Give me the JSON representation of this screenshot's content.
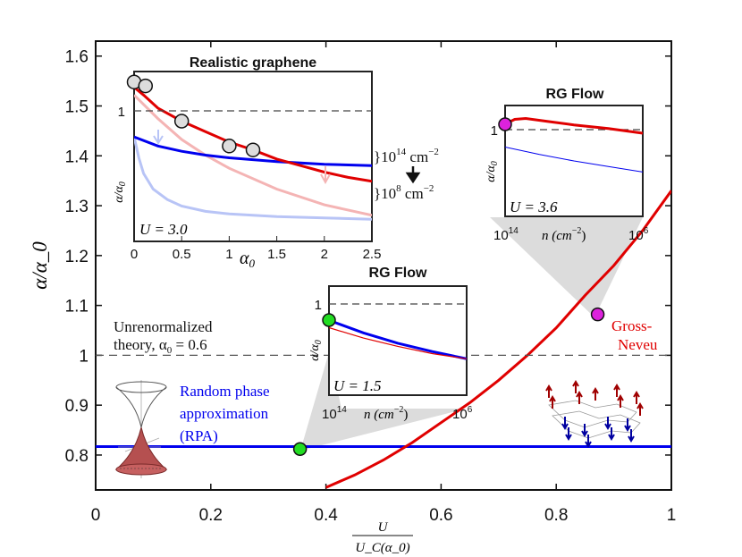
{
  "chart_data": {
    "type": "line",
    "main": {
      "xlabel_num": "U",
      "xlabel_den": "U_C(α_0)",
      "ylabel": "α/α_0",
      "xlim": [
        0,
        1
      ],
      "ylim": [
        0.73,
        1.63
      ],
      "x_ticks": [
        "0",
        "0.2",
        "0.4",
        "0.6",
        "0.8",
        "1"
      ],
      "y_ticks": [
        "0.8",
        "0.9",
        "1",
        "1.1",
        "1.2",
        "1.3",
        "1.4",
        "1.5",
        "1.6"
      ],
      "series": [
        {
          "name": "Random phase approximation (RPA)",
          "color": "#0000ee",
          "x": [
            0,
            1
          ],
          "y": [
            0.817,
            0.817
          ]
        },
        {
          "name": "Gross-Neveu",
          "color": "#e00000",
          "x": [
            0.4,
            0.45,
            0.5,
            0.55,
            0.6,
            0.65,
            0.7,
            0.75,
            0.8,
            0.85,
            0.9,
            0.95,
            1.0
          ],
          "y": [
            0.735,
            0.76,
            0.79,
            0.825,
            0.865,
            0.905,
            0.95,
            1.0,
            1.055,
            1.12,
            1.18,
            1.25,
            1.33
          ]
        },
        {
          "name": "Unrenormalized",
          "color": "#555555",
          "dashed": true,
          "x": [
            0,
            1
          ],
          "y": [
            1.0,
            1.0
          ]
        }
      ],
      "markers": [
        {
          "x": 0.355,
          "y": 0.812,
          "color": "#22dd22"
        },
        {
          "x": 0.872,
          "y": 1.082,
          "color": "#dd22dd"
        }
      ],
      "annotations": {
        "rpa_line1": "Random phase",
        "rpa_line2": "approximation",
        "rpa_line3": "(RPA)",
        "gn_line1": "Gross-",
        "gn_line2": "Neveu",
        "unren_line1": "Unrenormalized",
        "unren_line2": "theory, α",
        "unren_sub": "0",
        "unren_val": " = 0.6"
      }
    },
    "inset_graphene": {
      "title": "Realistic graphene",
      "xlabel": "α",
      "xlabel_sub": "0",
      "ylabel": "α/α",
      "ylabel_sub": "0",
      "xlim": [
        0,
        2.5
      ],
      "ylim": [
        0.6,
        1.25
      ],
      "x_ticks": [
        "0",
        "0.5",
        "1",
        "1.5",
        "2",
        "2.5"
      ],
      "y_tick": "1",
      "u_label": "U = 3.0",
      "density_high": "}10",
      "density_high_exp": "14",
      "density_high_unit": " cm",
      "density_high_unit_exp": "−2",
      "density_low": "}10",
      "density_low_exp": "8",
      "density_low_unit": " cm",
      "density_low_unit_exp": "−2",
      "series": [
        {
          "name": "red 10^14",
          "color": "#e00000",
          "x": [
            0,
            0.1,
            0.25,
            0.5,
            0.75,
            1.0,
            1.25,
            1.5,
            1.75,
            2.0,
            2.25,
            2.5
          ],
          "y": [
            1.19,
            1.16,
            1.11,
            1.06,
            1.02,
            0.98,
            0.95,
            0.915,
            0.89,
            0.865,
            0.845,
            0.83
          ]
        },
        {
          "name": "blue 10^14",
          "color": "#0000ee",
          "x": [
            0,
            0.25,
            0.5,
            0.75,
            1.0,
            1.5,
            2.0,
            2.5
          ],
          "y": [
            1.0,
            0.965,
            0.945,
            0.93,
            0.92,
            0.905,
            0.895,
            0.89
          ]
        },
        {
          "name": "red 10^8",
          "color": "#f4b4b4",
          "x": [
            0,
            0.25,
            0.5,
            0.75,
            1.0,
            1.5,
            2.0,
            2.5
          ],
          "y": [
            1.16,
            1.07,
            0.99,
            0.93,
            0.88,
            0.8,
            0.74,
            0.7
          ]
        },
        {
          "name": "blue 10^8",
          "color": "#b8c4f6",
          "x": [
            0,
            0.05,
            0.1,
            0.2,
            0.35,
            0.5,
            0.75,
            1.0,
            1.5,
            2.0,
            2.5
          ],
          "y": [
            1.0,
            0.92,
            0.86,
            0.8,
            0.76,
            0.735,
            0.715,
            0.705,
            0.695,
            0.69,
            0.685
          ]
        }
      ],
      "markers": [
        {
          "x": 0.0,
          "y": 1.21
        },
        {
          "x": 0.12,
          "y": 1.195
        },
        {
          "x": 0.5,
          "y": 1.06
        },
        {
          "x": 1.0,
          "y": 0.965
        },
        {
          "x": 1.25,
          "y": 0.95
        }
      ]
    },
    "inset_rg_mid": {
      "title": "RG Flow",
      "ylabel": "α/α",
      "ylabel_sub": "0",
      "y_tick": "1",
      "u_label": "U = 1.5",
      "x_left": "10",
      "x_left_exp": "14",
      "x_right": "10",
      "x_right_exp": "6",
      "xlabel": "n (cm",
      "xlabel_exp": "−2",
      "xlabel_close": ")",
      "series": [
        {
          "name": "blue",
          "color": "#0000ee",
          "x": [
            0,
            0.25,
            0.5,
            0.75,
            1.0
          ],
          "y": [
            0.72,
            0.6,
            0.5,
            0.42,
            0.35
          ]
        },
        {
          "name": "red",
          "color": "#e00000",
          "x": [
            0,
            0.25,
            0.5,
            0.75,
            1.0
          ],
          "y": [
            0.65,
            0.55,
            0.47,
            0.4,
            0.35
          ]
        }
      ]
    },
    "inset_rg_right": {
      "title": "RG Flow",
      "ylabel": "α/α",
      "ylabel_sub": "0",
      "y_tick": "1",
      "u_label": "U = 3.6",
      "x_left": "10",
      "x_left_exp": "14",
      "x_right": "10",
      "x_right_exp": "6",
      "xlabel": "n (cm",
      "xlabel_exp": "−2",
      "xlabel_close": ")",
      "series": [
        {
          "name": "red",
          "color": "#e00000",
          "x": [
            0,
            0.07,
            0.15,
            0.3,
            0.5,
            0.75,
            1.0
          ],
          "y": [
            1.0,
            1.05,
            1.06,
            1.03,
            0.99,
            0.95,
            0.9
          ]
        },
        {
          "name": "blue",
          "color": "#0000ee",
          "x": [
            0,
            0.25,
            0.5,
            0.75,
            1.0
          ],
          "y": [
            0.75,
            0.67,
            0.6,
            0.54,
            0.48
          ]
        }
      ]
    }
  }
}
